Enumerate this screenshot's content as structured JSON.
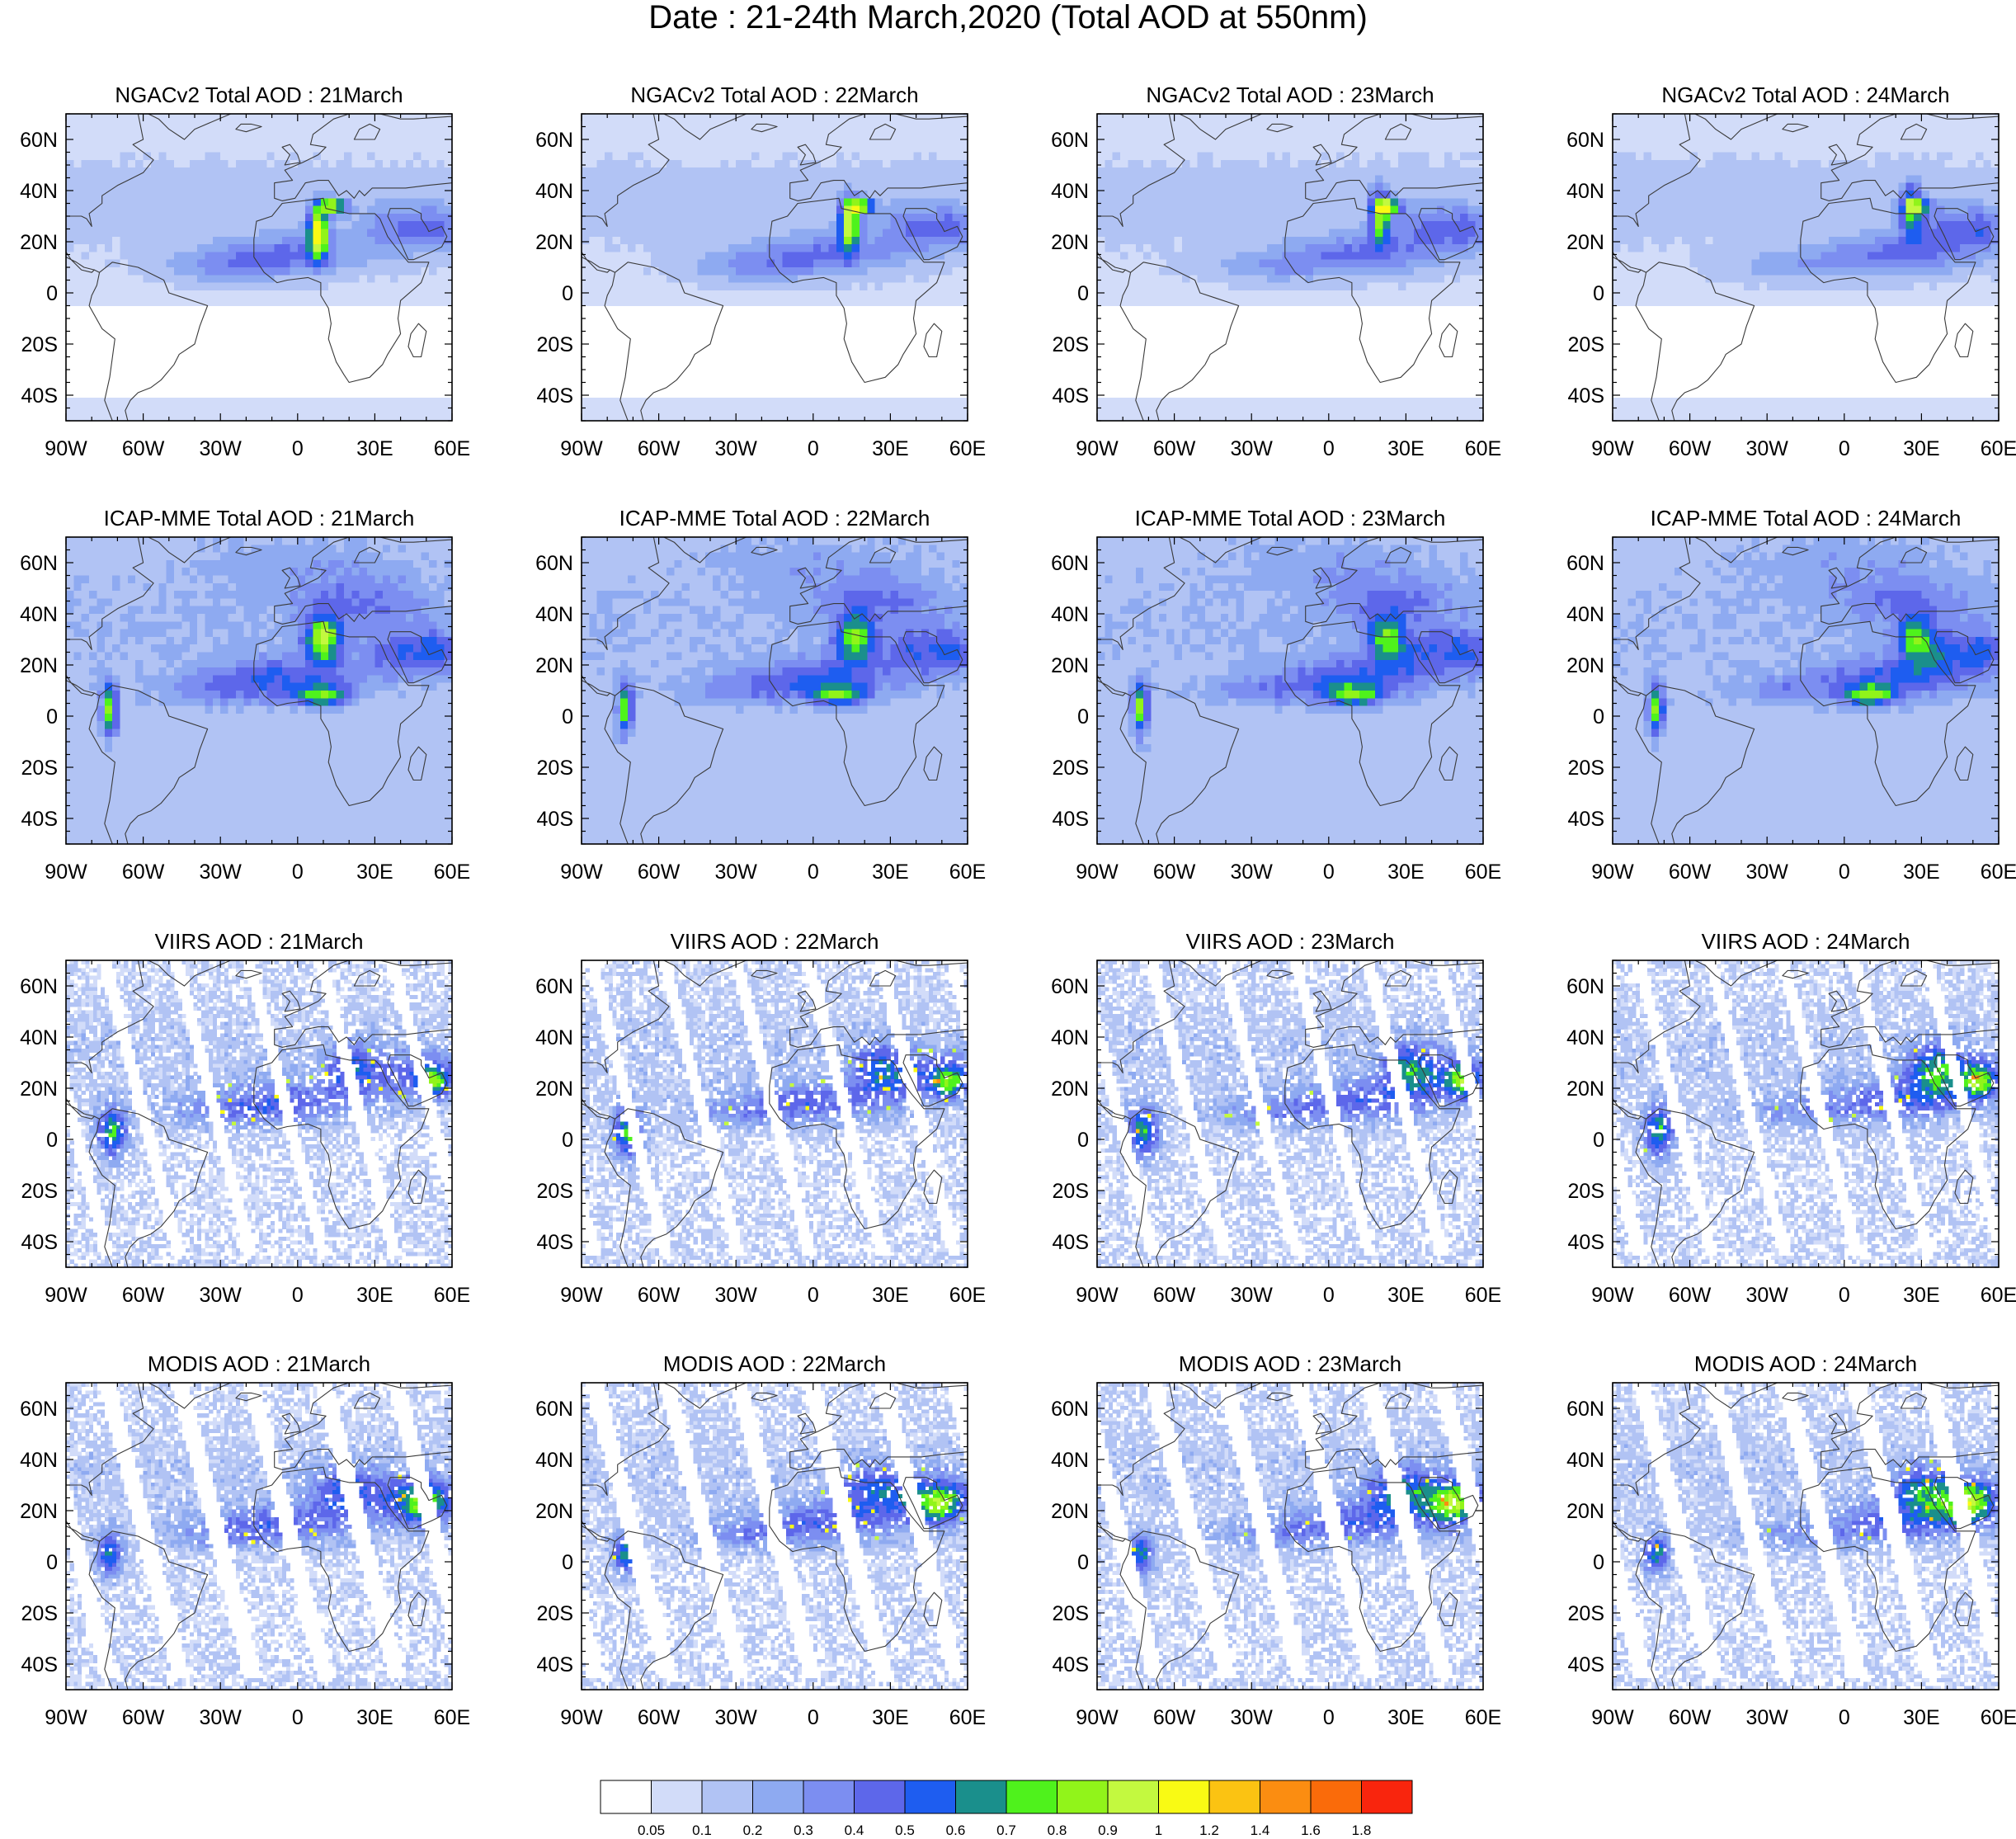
{
  "figure": {
    "title": "Date : 21-24th March,2020 (Total AOD at 550nm)"
  },
  "axes": {
    "lon_min": -90,
    "lon_max": 60,
    "lat_min": -50,
    "lat_max": 70,
    "x_ticks": [
      {
        "value": -90,
        "label": "90W"
      },
      {
        "value": -60,
        "label": "60W"
      },
      {
        "value": -30,
        "label": "30W"
      },
      {
        "value": 0,
        "label": "0"
      },
      {
        "value": 30,
        "label": "30E"
      },
      {
        "value": 60,
        "label": "60E"
      }
    ],
    "y_ticks": [
      {
        "value": 60,
        "label": "60N"
      },
      {
        "value": 40,
        "label": "40N"
      },
      {
        "value": 20,
        "label": "20N"
      },
      {
        "value": 0,
        "label": "0"
      },
      {
        "value": -20,
        "label": "20S"
      },
      {
        "value": -40,
        "label": "40S"
      }
    ]
  },
  "rows": [
    {
      "key": "ngac",
      "style": "model-smooth",
      "panels": [
        {
          "title": "NGACv2 Total AOD : 21March",
          "day": 21
        },
        {
          "title": "NGACv2 Total AOD : 22March",
          "day": 22
        },
        {
          "title": "NGACv2 Total AOD : 23March",
          "day": 23
        },
        {
          "title": "NGACv2 Total AOD : 24March",
          "day": 24
        }
      ]
    },
    {
      "key": "icap",
      "style": "model-broad",
      "panels": [
        {
          "title": "ICAP-MME Total AOD : 21March",
          "day": 21
        },
        {
          "title": "ICAP-MME Total AOD : 22March",
          "day": 22
        },
        {
          "title": "ICAP-MME Total AOD : 23March",
          "day": 23
        },
        {
          "title": "ICAP-MME Total AOD : 24March",
          "day": 24
        }
      ]
    },
    {
      "key": "viirs",
      "style": "satellite-speckled",
      "panels": [
        {
          "title": "VIIRS AOD : 21March",
          "day": 21
        },
        {
          "title": "VIIRS AOD : 22March",
          "day": 22
        },
        {
          "title": "VIIRS AOD : 23March",
          "day": 23
        },
        {
          "title": "VIIRS AOD : 24March",
          "day": 24
        }
      ]
    },
    {
      "key": "modis",
      "style": "satellite-swaths",
      "panels": [
        {
          "title": "MODIS AOD : 21March",
          "day": 21
        },
        {
          "title": "MODIS AOD : 22March",
          "day": 22
        },
        {
          "title": "MODIS AOD : 23March",
          "day": 23
        },
        {
          "title": "MODIS AOD : 24March",
          "day": 24
        }
      ]
    }
  ],
  "colorbar": {
    "labels": [
      "0.05",
      "0.1",
      "0.2",
      "0.3",
      "0.4",
      "0.5",
      "0.6",
      "0.7",
      "0.8",
      "0.9",
      "1",
      "1.2",
      "1.4",
      "1.6",
      "1.8"
    ],
    "colors": [
      "#ffffff",
      "#d2dcf9",
      "#b1c3f4",
      "#8eaaf1",
      "#7c8ef1",
      "#5d67ea",
      "#1e5df0",
      "#1a8f8c",
      "#4ff21c",
      "#91f41a",
      "#c3f93f",
      "#f9fa14",
      "#fbc312",
      "#fb8d11",
      "#fa6b0a",
      "#f9250d"
    ]
  },
  "map_colors": {
    "land_outline": "#3a3a3a",
    "frame": "#000000"
  }
}
